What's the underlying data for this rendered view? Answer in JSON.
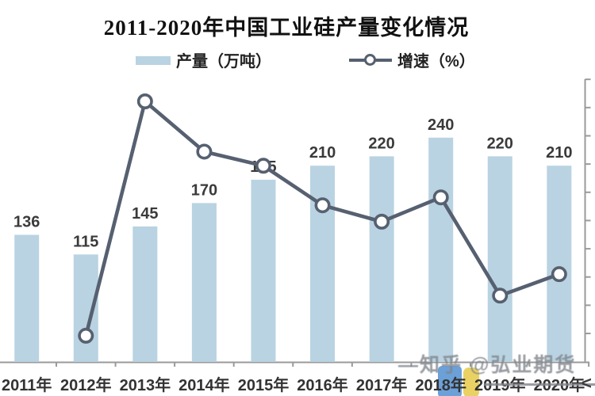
{
  "header": {
    "title": "2011-2020年中国工业硅产量变化情况"
  },
  "legend": [
    {
      "label": "产量（万吨）",
      "marker": "bar-swatch",
      "color": "#b9d3e2"
    },
    {
      "label": "增速（%）",
      "marker": "line-circle-swatch",
      "color": "#566070"
    }
  ],
  "chart_data": {
    "type": "bar+line",
    "title": "2011-2020年中国工业硅产量变化情况",
    "categories": [
      "2011年",
      "2012年",
      "2013年",
      "2014年",
      "2015年",
      "2016年",
      "2017年",
      "2018年",
      "2019年",
      "2020年"
    ],
    "series": [
      {
        "name": "产量（万吨）",
        "type": "bar",
        "color": "#b9d3e2",
        "values": [
          136,
          115,
          145,
          170,
          195,
          210,
          220,
          240,
          220,
          210
        ],
        "data_labels": [
          "136",
          "115",
          "145",
          "170",
          "195",
          "210",
          "220",
          "240",
          "220",
          "210"
        ]
      },
      {
        "name": "增速（%）",
        "type": "line",
        "color": "#566070",
        "marker": "open-circle",
        "values": [
          null,
          -15.4,
          26.1,
          17.2,
          14.7,
          7.7,
          4.8,
          9.1,
          -8.3,
          -4.5
        ],
        "note": "right-axis tick labels are cropped out of the image; values estimated from marker positions (YoY growth of production)"
      }
    ],
    "left_axis": {
      "visible": false
    },
    "right_axis": {
      "tick_values": [
        30,
        25,
        20,
        15,
        10,
        5,
        0,
        -5,
        -10,
        -15
      ],
      "labels_visible": false
    },
    "grid": false,
    "legend_position": "top"
  },
  "watermark": {
    "text": "—知乎 @弘业期货",
    "strike_through": true,
    "edge_glyph": "<"
  },
  "colors": {
    "bar": "#b9d3e2",
    "line": "#566070",
    "axis": "#9a9a9a",
    "bar_label": "#3a3a3a",
    "x_label": "#333333",
    "title": "#111111",
    "watermark": "#80858b",
    "logo_blue": "#6ca0d8",
    "logo_yellow": "#e9d163"
  }
}
